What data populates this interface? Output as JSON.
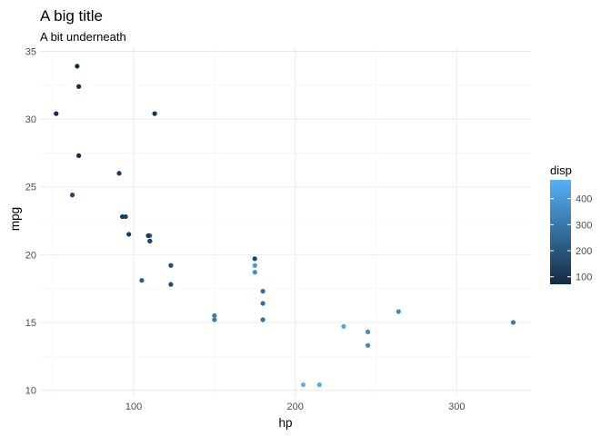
{
  "chart_data": {
    "type": "scatter",
    "title": "A big title",
    "subtitle": "A bit underneath",
    "xlabel": "hp",
    "ylabel": "mpg",
    "xlim": [
      42,
      346
    ],
    "ylim": [
      9.5,
      35.3
    ],
    "x_ticks": [
      100,
      200,
      300
    ],
    "x_minor_ticks": [
      50,
      150,
      250
    ],
    "y_ticks": [
      10,
      15,
      20,
      25,
      30,
      35
    ],
    "y_minor_ticks": [
      12.5,
      17.5,
      22.5,
      27.5,
      32.5
    ],
    "grid": true,
    "color_legend": {
      "title": "disp",
      "position": "right",
      "range": [
        71.1,
        472
      ],
      "ticks": [
        100,
        200,
        300,
        400
      ],
      "low_color": "#132B43",
      "high_color": "#56B1F7"
    },
    "points": [
      {
        "hp": 110,
        "mpg": 21.0,
        "disp": 160
      },
      {
        "hp": 110,
        "mpg": 21.0,
        "disp": 160
      },
      {
        "hp": 93,
        "mpg": 22.8,
        "disp": 108
      },
      {
        "hp": 110,
        "mpg": 21.4,
        "disp": 258
      },
      {
        "hp": 175,
        "mpg": 18.7,
        "disp": 360
      },
      {
        "hp": 105,
        "mpg": 18.1,
        "disp": 225
      },
      {
        "hp": 245,
        "mpg": 14.3,
        "disp": 360
      },
      {
        "hp": 62,
        "mpg": 24.4,
        "disp": 146.7
      },
      {
        "hp": 95,
        "mpg": 22.8,
        "disp": 140.8
      },
      {
        "hp": 123,
        "mpg": 19.2,
        "disp": 167.6
      },
      {
        "hp": 123,
        "mpg": 17.8,
        "disp": 167.6
      },
      {
        "hp": 180,
        "mpg": 16.4,
        "disp": 275.8
      },
      {
        "hp": 180,
        "mpg": 17.3,
        "disp": 275.8
      },
      {
        "hp": 180,
        "mpg": 15.2,
        "disp": 275.8
      },
      {
        "hp": 205,
        "mpg": 10.4,
        "disp": 472
      },
      {
        "hp": 215,
        "mpg": 10.4,
        "disp": 460
      },
      {
        "hp": 230,
        "mpg": 14.7,
        "disp": 440
      },
      {
        "hp": 66,
        "mpg": 32.4,
        "disp": 78.7
      },
      {
        "hp": 52,
        "mpg": 30.4,
        "disp": 75.7
      },
      {
        "hp": 65,
        "mpg": 33.9,
        "disp": 71.1
      },
      {
        "hp": 97,
        "mpg": 21.5,
        "disp": 120.1
      },
      {
        "hp": 150,
        "mpg": 15.5,
        "disp": 318
      },
      {
        "hp": 150,
        "mpg": 15.2,
        "disp": 304
      },
      {
        "hp": 245,
        "mpg": 13.3,
        "disp": 350
      },
      {
        "hp": 175,
        "mpg": 19.2,
        "disp": 400
      },
      {
        "hp": 66,
        "mpg": 27.3,
        "disp": 79
      },
      {
        "hp": 91,
        "mpg": 26.0,
        "disp": 120.3
      },
      {
        "hp": 113,
        "mpg": 30.4,
        "disp": 95.1
      },
      {
        "hp": 264,
        "mpg": 15.8,
        "disp": 351
      },
      {
        "hp": 175,
        "mpg": 19.7,
        "disp": 145
      },
      {
        "hp": 335,
        "mpg": 15.0,
        "disp": 301
      },
      {
        "hp": 109,
        "mpg": 21.4,
        "disp": 121
      }
    ]
  }
}
